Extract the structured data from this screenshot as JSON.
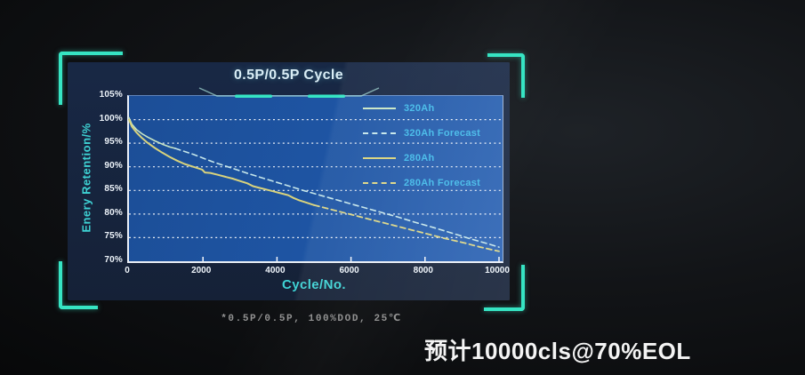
{
  "frame": {
    "accent_color": "#36e4c3"
  },
  "chart_data": {
    "type": "line",
    "title": "0.5P/0.5P Cycle",
    "xlabel": "Cycle/No.",
    "ylabel": "Enery Retention/%",
    "xlim": [
      0,
      10000
    ],
    "ylim": [
      70,
      105
    ],
    "x_ticks": [
      0,
      2000,
      4000,
      6000,
      8000,
      10000
    ],
    "x_tick_labels": [
      "0",
      "2000",
      "4000",
      "6000",
      "8000",
      "10000"
    ],
    "y_ticks": [
      105,
      100,
      95,
      90,
      85,
      80,
      75,
      70
    ],
    "y_tick_labels": [
      "105%",
      "100%",
      "95%",
      "90%",
      "85%",
      "80%",
      "75%",
      "70%"
    ],
    "grid": "horizontal-dashed",
    "legend_position": "inside-top-right",
    "series": [
      {
        "name": "320Ah",
        "style": "solid",
        "color": "#c9e6c5",
        "width": 1.6,
        "points": [
          [
            0,
            100.4
          ],
          [
            80,
            99.0
          ],
          [
            200,
            97.9
          ],
          [
            350,
            97.0
          ],
          [
            500,
            96.3
          ],
          [
            700,
            95.5
          ],
          [
            900,
            94.8
          ],
          [
            1100,
            94.2
          ],
          [
            1250,
            93.9
          ]
        ]
      },
      {
        "name": "320Ah Forecast",
        "style": "dashed",
        "color": "#c5e6ea",
        "width": 1.6,
        "points": [
          [
            1250,
            93.9
          ],
          [
            1750,
            92.6
          ],
          [
            2250,
            91.1
          ],
          [
            2750,
            89.8
          ],
          [
            3250,
            88.5
          ],
          [
            3750,
            87.3
          ],
          [
            4250,
            86.1
          ],
          [
            4750,
            84.9
          ],
          [
            5250,
            83.8
          ],
          [
            5750,
            82.7
          ],
          [
            6250,
            81.6
          ],
          [
            6750,
            80.5
          ],
          [
            7250,
            79.4
          ],
          [
            7750,
            78.2
          ],
          [
            8250,
            77.1
          ],
          [
            8750,
            75.9
          ],
          [
            9250,
            74.7
          ],
          [
            9750,
            73.6
          ],
          [
            10000,
            73.0
          ]
        ]
      },
      {
        "name": "280Ah",
        "style": "solid",
        "color": "#d9d37c",
        "width": 2,
        "points": [
          [
            0,
            100.0
          ],
          [
            80,
            98.5
          ],
          [
            200,
            97.3
          ],
          [
            350,
            96.1
          ],
          [
            500,
            95.1
          ],
          [
            700,
            94.0
          ],
          [
            900,
            93.0
          ],
          [
            1100,
            92.1
          ],
          [
            1300,
            91.3
          ],
          [
            1500,
            90.6
          ],
          [
            1700,
            90.1
          ],
          [
            1900,
            89.6
          ],
          [
            1980,
            89.4
          ],
          [
            2050,
            88.8
          ],
          [
            2200,
            88.7
          ],
          [
            2400,
            88.3
          ],
          [
            2600,
            87.9
          ],
          [
            2800,
            87.5
          ],
          [
            3000,
            87.0
          ],
          [
            3200,
            86.5
          ],
          [
            3350,
            85.9
          ],
          [
            3500,
            85.6
          ],
          [
            3700,
            85.2
          ],
          [
            3900,
            84.8
          ],
          [
            4100,
            84.4
          ],
          [
            4300,
            84.0
          ],
          [
            4450,
            83.4
          ],
          [
            4600,
            82.9
          ],
          [
            4800,
            82.4
          ],
          [
            5000,
            81.9
          ]
        ]
      },
      {
        "name": "280Ah Forecast",
        "style": "dashed",
        "color": "#dcd685",
        "width": 1.8,
        "points": [
          [
            5000,
            81.9
          ],
          [
            5500,
            80.9
          ],
          [
            6000,
            79.9
          ],
          [
            6500,
            78.9
          ],
          [
            7000,
            77.9
          ],
          [
            7500,
            76.9
          ],
          [
            8000,
            75.9
          ],
          [
            8500,
            74.9
          ],
          [
            9000,
            74.0
          ],
          [
            9500,
            73.0
          ],
          [
            10000,
            72.1
          ]
        ]
      }
    ]
  },
  "footnote": "*0.5P/0.5P, 100%DOD, 25℃",
  "eol_note": "预计10000cls@70%EOL"
}
